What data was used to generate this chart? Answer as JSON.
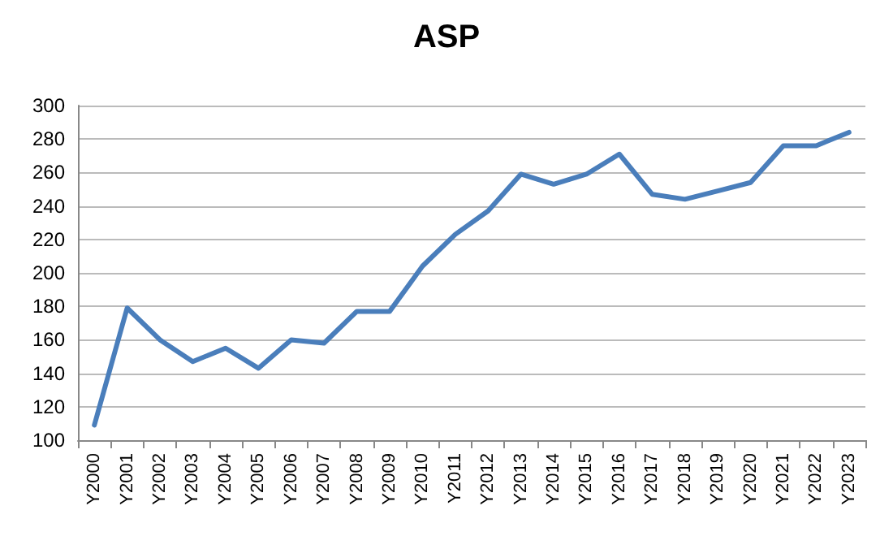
{
  "chart_data": {
    "type": "line",
    "title": "ASP",
    "categories": [
      "Y2000",
      "Y2001",
      "Y2002",
      "Y2003",
      "Y2004",
      "Y2005",
      "Y2006",
      "Y2007",
      "Y2008",
      "Y2009",
      "Y2010",
      "Y2011",
      "Y2012",
      "Y2013",
      "Y2014",
      "Y2015",
      "Y2016",
      "Y2017",
      "Y2018",
      "Y2019",
      "Y2020",
      "Y2021",
      "Y2022",
      "Y2023"
    ],
    "series": [
      {
        "color": "#4a7ebb",
        "values": [
          109,
          179,
          160,
          147,
          155,
          143,
          160,
          158,
          177,
          177,
          204,
          223,
          237,
          259,
          253,
          259,
          271,
          247,
          244,
          249,
          254,
          276,
          276,
          284
        ]
      }
    ],
    "ylim": [
      100,
      300
    ],
    "yticks": [
      100,
      120,
      140,
      160,
      180,
      200,
      220,
      240,
      260,
      280,
      300
    ],
    "grid": "y",
    "marker": "none",
    "line_style": "solid"
  }
}
